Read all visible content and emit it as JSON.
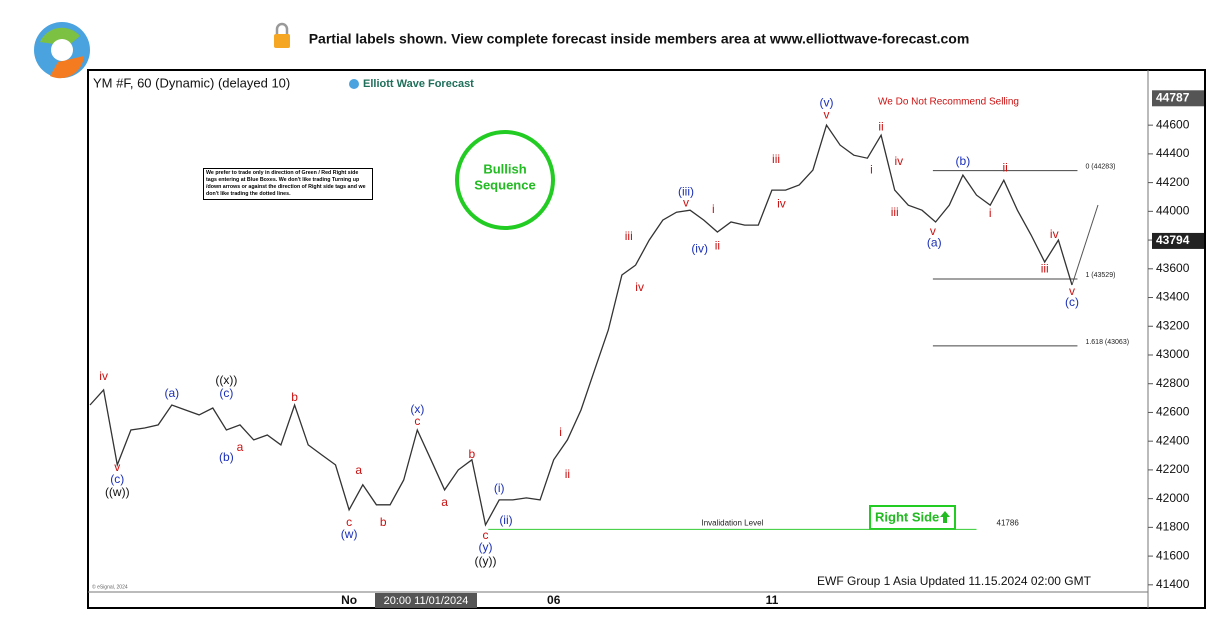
{
  "header": {
    "text": "Partial labels shown. View complete forecast inside members area at www.elliottwave-forecast.com"
  },
  "chart_data": {
    "type": "line",
    "title": "YM #F, 60 (Dynamic) (delayed 10)",
    "brand": "Elliott Wave Forecast",
    "warning": "We Do Not Recommend Selling",
    "note": "We prefer to trade only in direction of Green / Red Right side tags entering at Blue Boxes. We don't like trading Turning up /down arrows or against the direction of Right side tags and we don't like trading the dotted lines.",
    "badge": [
      "Bullish",
      "Sequence"
    ],
    "right_side": "Right Side",
    "footer": "EWF Group 1 Asia Updated 11.15.2024 02:00 GMT",
    "copyright": "© eSignal, 2024",
    "crosshair_label": "20:00 11/01/2024",
    "categories": [
      null,
      null,
      null,
      null,
      null,
      null,
      null,
      null,
      null,
      null,
      null,
      null,
      null,
      null,
      null,
      null,
      null,
      null,
      null,
      "No",
      null,
      null,
      null,
      null,
      null,
      null,
      null,
      null,
      null,
      null,
      null,
      null,
      null,
      null,
      "06",
      null,
      null,
      null,
      null,
      null,
      null,
      null,
      null,
      null,
      null,
      null,
      null,
      null,
      null,
      null,
      "11",
      null,
      null,
      null,
      null,
      null,
      null,
      null,
      null,
      null,
      null,
      null,
      null,
      null,
      null,
      null,
      null,
      null,
      null,
      null,
      null,
      null,
      null
    ],
    "series": [
      {
        "name": "YM #F",
        "color": "#333333",
        "values": [
          42652,
          42757,
          42235,
          42478,
          42492,
          42513,
          42652,
          42617,
          42583,
          42631,
          42478,
          42513,
          42409,
          42443,
          42374,
          42652,
          42374,
          42304,
          42235,
          41922,
          42096,
          41957,
          41957,
          42130,
          42478,
          42270,
          42061,
          42200,
          42270,
          41817,
          41991,
          41991,
          42005,
          41991,
          42270,
          42409,
          42617,
          42896,
          43174,
          43557,
          43626,
          43800,
          43939,
          43994,
          44008,
          43939,
          43856,
          43926,
          43904,
          43904,
          44148,
          44148,
          44183,
          44287,
          44600,
          44461,
          44391,
          44370,
          44530,
          44148,
          44043,
          44008,
          43926,
          44043,
          44252,
          44113,
          44043,
          44217,
          44008,
          43835,
          43647,
          43800,
          43487
        ]
      }
    ],
    "ylim": [
      41350,
      44970
    ],
    "yticks": [
      41400,
      41600,
      41800,
      42000,
      42200,
      42400,
      42600,
      42800,
      43000,
      43200,
      43400,
      43600,
      43800,
      44000,
      44200,
      44400,
      44600
    ],
    "axis_badges": [
      44787,
      43794
    ],
    "levels": [
      {
        "value": 44283,
        "label": "0 (44283)",
        "from": 61.8,
        "to": 72.4,
        "color": "#444444"
      },
      {
        "value": 43529,
        "label": "1 (43529)",
        "from": 61.8,
        "to": 72.4,
        "color": "#444444"
      },
      {
        "value": 43063,
        "label": "1.618 (43063)",
        "from": 61.8,
        "to": 72.4,
        "color": "#444444"
      },
      {
        "value": 41786,
        "label": "Invalidation Level",
        "from": 29.2,
        "to": 65,
        "color": "#33cc33"
      }
    ],
    "annotations": [
      {
        "text": "iv",
        "x": 1,
        "y": 42847,
        "color": "#cc1111"
      },
      {
        "text": "v",
        "x": 2,
        "y": 42214,
        "color": "#cc1111"
      },
      {
        "text": "(c)",
        "x": 2,
        "y": 42130,
        "color": "#1a2fb8"
      },
      {
        "text": "((w))",
        "x": 2,
        "y": 42040,
        "color": "#111111"
      },
      {
        "text": "(a)",
        "x": 6,
        "y": 42729,
        "color": "#1a2fb8"
      },
      {
        "text": "((x))",
        "x": 10,
        "y": 42819,
        "color": "#111111"
      },
      {
        "text": "(c)",
        "x": 10,
        "y": 42729,
        "color": "#1a2fb8"
      },
      {
        "text": "(b)",
        "x": 10,
        "y": 42283,
        "color": "#1a2fb8"
      },
      {
        "text": "a",
        "x": 11,
        "y": 42353,
        "color": "#cc1111"
      },
      {
        "text": "b",
        "x": 15,
        "y": 42701,
        "color": "#cc1111"
      },
      {
        "text": "a",
        "x": 19.7,
        "y": 42193,
        "color": "#cc1111"
      },
      {
        "text": "c",
        "x": 19,
        "y": 41831,
        "color": "#cc1111"
      },
      {
        "text": "(w)",
        "x": 19,
        "y": 41748,
        "color": "#1a2fb8"
      },
      {
        "text": "b",
        "x": 21.5,
        "y": 41831,
        "color": "#cc1111"
      },
      {
        "text": "(x)",
        "x": 24,
        "y": 42617,
        "color": "#1a2fb8"
      },
      {
        "text": "c",
        "x": 24,
        "y": 42534,
        "color": "#cc1111"
      },
      {
        "text": "a",
        "x": 26,
        "y": 41970,
        "color": "#cc1111"
      },
      {
        "text": "b",
        "x": 28,
        "y": 42304,
        "color": "#cc1111"
      },
      {
        "text": "(i)",
        "x": 30,
        "y": 42068,
        "color": "#1a2fb8"
      },
      {
        "text": "(ii)",
        "x": 30.5,
        "y": 41845,
        "color": "#1a2fb8"
      },
      {
        "text": "c",
        "x": 29,
        "y": 41741,
        "color": "#cc1111"
      },
      {
        "text": "(y)",
        "x": 29,
        "y": 41657,
        "color": "#1a2fb8"
      },
      {
        "text": "((y))",
        "x": 29,
        "y": 41560,
        "color": "#111111"
      },
      {
        "text": "i",
        "x": 34.5,
        "y": 42457,
        "color": "#cc1111"
      },
      {
        "text": "ii",
        "x": 35,
        "y": 42165,
        "color": "#cc1111"
      },
      {
        "text": "iii",
        "x": 39.5,
        "y": 43821,
        "color": "#cc1111"
      },
      {
        "text": "iv",
        "x": 40.3,
        "y": 43466,
        "color": "#cc1111"
      },
      {
        "text": "(iii)",
        "x": 43.7,
        "y": 44134,
        "color": "#1a2fb8"
      },
      {
        "text": "v",
        "x": 43.7,
        "y": 44057,
        "color": "#cc1111"
      },
      {
        "text": "i",
        "x": 45.7,
        "y": 44009,
        "color": "#cc1111"
      },
      {
        "text": "(iv)",
        "x": 44.7,
        "y": 43737,
        "color": "#1a2fb8"
      },
      {
        "text": "ii",
        "x": 46,
        "y": 43758,
        "color": "#cc1111"
      },
      {
        "text": "iii",
        "x": 50.3,
        "y": 44357,
        "color": "#cc1111"
      },
      {
        "text": "iv",
        "x": 50.7,
        "y": 44050,
        "color": "#cc1111"
      },
      {
        "text": "(v)",
        "x": 54,
        "y": 44753,
        "color": "#1a2fb8"
      },
      {
        "text": "v",
        "x": 54,
        "y": 44670,
        "color": "#cc1111"
      },
      {
        "text": "ii",
        "x": 58,
        "y": 44586,
        "color": "#cc1111"
      },
      {
        "text": "i",
        "x": 57.3,
        "y": 44287,
        "color": "#cc1111"
      },
      {
        "text": "iv",
        "x": 59.3,
        "y": 44343,
        "color": "#cc1111"
      },
      {
        "text": "iii",
        "x": 59,
        "y": 43988,
        "color": "#cc1111"
      },
      {
        "text": "v",
        "x": 61.8,
        "y": 43856,
        "color": "#cc1111"
      },
      {
        "text": "(a)",
        "x": 61.9,
        "y": 43779,
        "color": "#1a2fb8"
      },
      {
        "text": "(b)",
        "x": 64,
        "y": 44343,
        "color": "#1a2fb8"
      },
      {
        "text": "ii",
        "x": 67.1,
        "y": 44301,
        "color": "#cc1111"
      },
      {
        "text": "i",
        "x": 66,
        "y": 43981,
        "color": "#cc1111"
      },
      {
        "text": "iv",
        "x": 70.7,
        "y": 43835,
        "color": "#cc1111"
      },
      {
        "text": "iii",
        "x": 70,
        "y": 43598,
        "color": "#cc1111"
      },
      {
        "text": "v",
        "x": 72,
        "y": 43438,
        "color": "#cc1111"
      },
      {
        "text": "(c)",
        "x": 72,
        "y": 43362,
        "color": "#1a2fb8"
      }
    ]
  }
}
